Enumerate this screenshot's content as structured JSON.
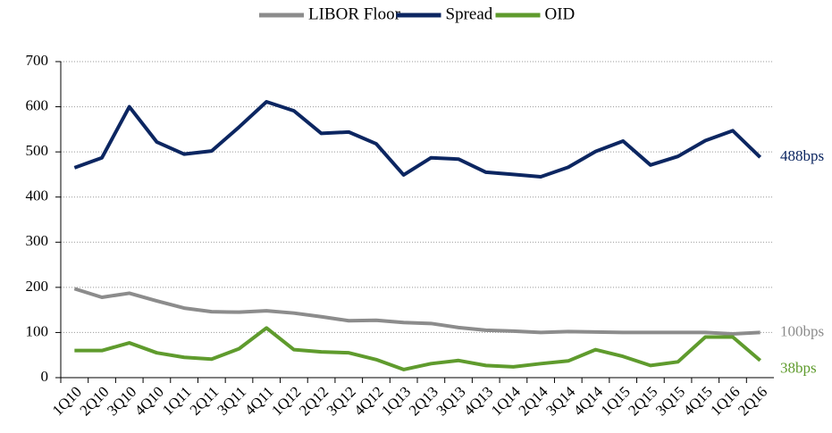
{
  "chart_data": {
    "type": "line",
    "categories": [
      "1Q10",
      "2Q10",
      "3Q10",
      "4Q10",
      "1Q11",
      "2Q11",
      "3Q11",
      "4Q11",
      "1Q12",
      "2Q12",
      "3Q12",
      "4Q12",
      "1Q13",
      "2Q13",
      "3Q13",
      "4Q13",
      "1Q14",
      "2Q14",
      "3Q14",
      "4Q14",
      "1Q15",
      "2Q15",
      "3Q15",
      "4Q15",
      "1Q16",
      "2Q16"
    ],
    "series": [
      {
        "name": "LIBOR Floor",
        "color": "#8c8c8c",
        "values": [
          197,
          178,
          187,
          170,
          154,
          146,
          145,
          148,
          143,
          135,
          126,
          127,
          122,
          120,
          111,
          105,
          103,
          100,
          102,
          101,
          100,
          100,
          100,
          100,
          97,
          100
        ]
      },
      {
        "name": "Spread",
        "color": "#0c2661",
        "values": [
          465,
          487,
          600,
          522,
          495,
          502,
          555,
          611,
          591,
          541,
          544,
          518,
          449,
          487,
          484,
          455,
          450,
          445,
          466,
          501,
          524,
          471,
          490,
          525,
          547,
          488
        ]
      },
      {
        "name": "OID",
        "color": "#5f9b2d",
        "values": [
          60,
          60,
          77,
          55,
          45,
          41,
          64,
          110,
          62,
          57,
          55,
          40,
          18,
          31,
          38,
          27,
          24,
          31,
          37,
          62,
          47,
          27,
          35,
          90,
          90,
          38
        ]
      }
    ],
    "annotations": [
      "100bps",
      "488bps",
      "38bps"
    ],
    "ylim": [
      0,
      700
    ],
    "yticks": [
      0,
      100,
      200,
      300,
      400,
      500,
      600,
      700
    ],
    "grid": true,
    "legend": "top"
  }
}
